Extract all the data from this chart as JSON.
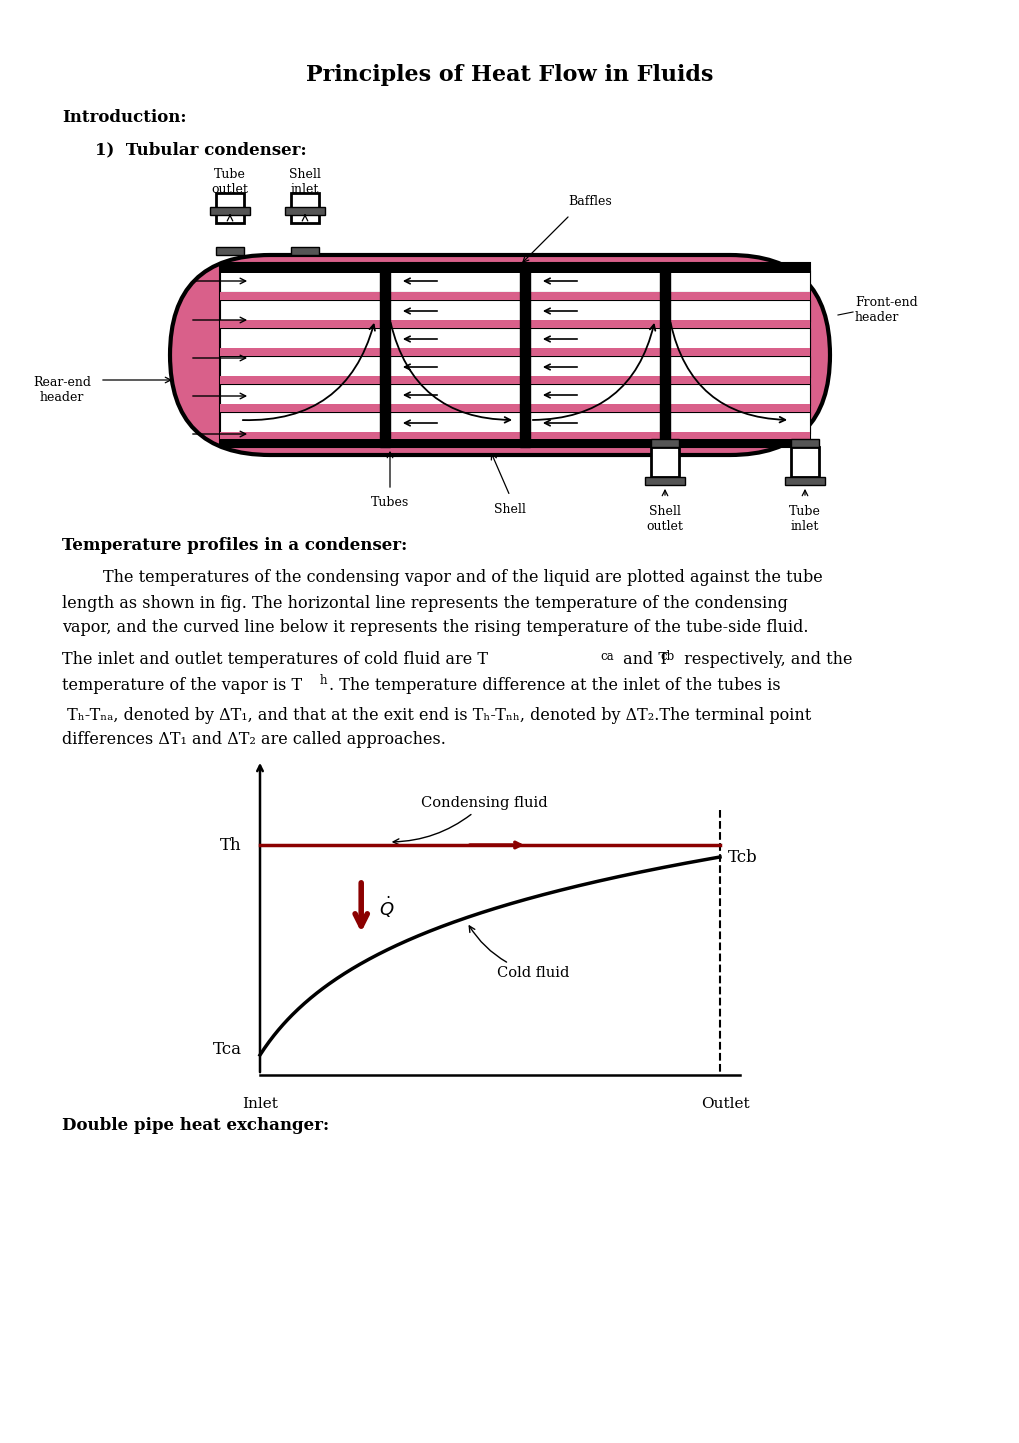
{
  "title": "Principles of Heat Flow in Fluids",
  "intro_label": "Introduction:",
  "item1_label": "1)  Tubular condenser:",
  "section2_label": "Temperature profiles in a condenser:",
  "para1_line1": "        The temperatures of the condensing vapor and of the liquid are plotted against the tube",
  "para1_line2": "length as shown in fig. The horizontal line represents the temperature of the condensing",
  "para1_line3": "vapor, and the curved line below it represents the rising temperature of the tube-side fluid.",
  "para2_line1a": "The inlet and outlet temperatures of cold fluid are T",
  "para2_line1b": "ca",
  "para2_line1c": " and T",
  "para2_line1d": "cb",
  "para2_line1e": " respectively, and the",
  "para2_line2a": "temperature of the vapor is T",
  "para2_line2b": "h",
  "para2_line2c": ". The temperature difference at the inlet of the tubes is",
  "para3_line1": " Tₕ-Tₙₐ, denoted by ΔT₁, and that at the exit end is Tₕ-Tₙₕ, denoted by ΔT₂.The terminal point",
  "para3_line2": "differences ΔT₁ and ΔT₂ are called approaches.",
  "double_pipe_label": "Double pipe heat exchanger:",
  "background_color": "#ffffff",
  "text_color": "#000000",
  "pink_color": "#d9608a",
  "red_color": "#8b0000",
  "gray_color": "#e8e8e8",
  "dark_gray": "#555555"
}
